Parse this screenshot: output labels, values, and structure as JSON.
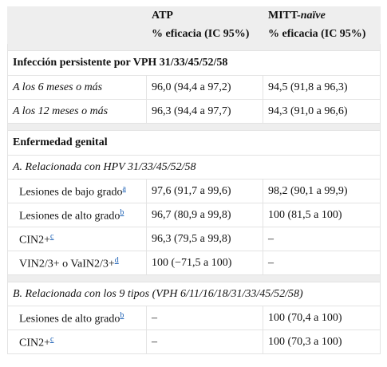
{
  "header": {
    "col1": "ATP",
    "col2_prefix": "MITT-",
    "col2_italic": "naïve",
    "col1_measure": "% eficacia (IC 95%)",
    "col2_measure": "% eficacia (IC 95%)"
  },
  "sections": [
    {
      "title": "Infección persistente por VPH 31/33/45/52/58",
      "rows": [
        {
          "label": "A los 6 meses o más",
          "atp": "96,0 (94,4 a 97,2)",
          "mitt": "94,5 (91,8 a 96,3)"
        },
        {
          "label": "A los 12 meses o más",
          "atp": "96,3 (94,4 a 97,7)",
          "mitt": "94,3 (91,0 a 96,6)"
        }
      ]
    },
    {
      "title": "Enfermedad genital",
      "subsections": [
        {
          "title": "A. Relacionada con HPV 31/33/45/52/58",
          "rows": [
            {
              "label": "Lesiones de bajo grado",
              "note": "a",
              "atp": "97,6 (91,7 a 99,6)",
              "mitt": "98,2 (90,1 a 99,9)"
            },
            {
              "label": "Lesiones de alto grado",
              "note": "b",
              "atp": "96,7 (80,9 a 99,8)",
              "mitt": "100 (81,5 a 100)"
            },
            {
              "label": "CIN2+",
              "note": "c",
              "atp": "96,3 (79,5 a 99,8)",
              "mitt": "–"
            },
            {
              "label": "VIN2/3+ o VaIN2/3+",
              "note": "d",
              "atp": "100 (−71,5 a 100)",
              "mitt": "–"
            }
          ]
        },
        {
          "title": "B. Relacionada con los 9 tipos (VPH 6/11/16/18/31/33/45/52/58)",
          "rows": [
            {
              "label": "Lesiones de alto grado",
              "note": "b",
              "atp": "–",
              "mitt": "100 (70,4 a 100)"
            },
            {
              "label": "CIN2+",
              "note": "c",
              "atp": "–",
              "mitt": "100 (70,3 a 100)"
            }
          ]
        }
      ]
    }
  ]
}
